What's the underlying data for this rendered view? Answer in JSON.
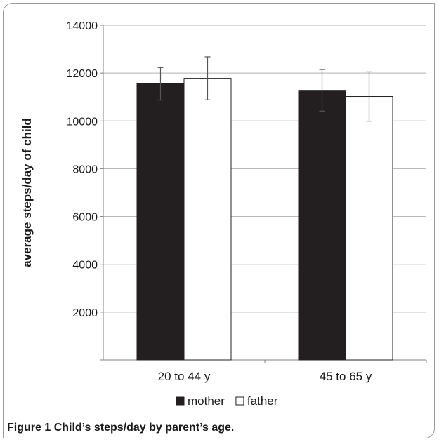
{
  "chart_data": {
    "type": "bar",
    "categories": [
      "20 to 44 y",
      "45 to 65 y"
    ],
    "series": [
      {
        "name": "mother",
        "values": [
          11550,
          11280
        ],
        "errors": [
          680,
          870
        ],
        "color": "#231f20"
      },
      {
        "name": "father",
        "values": [
          11780,
          11020
        ],
        "errors": [
          900,
          1030
        ],
        "color": "#ffffff"
      }
    ],
    "ylabel": "average steps/day of child",
    "xlabel": "",
    "ylim": [
      0,
      14000
    ],
    "yticks": [
      2000,
      4000,
      6000,
      8000,
      10000,
      12000,
      14000
    ],
    "grid": true,
    "legend_position": "bottom"
  },
  "caption": {
    "label": "Figure 1",
    "text": "Child’s steps/day by parent’s age."
  }
}
